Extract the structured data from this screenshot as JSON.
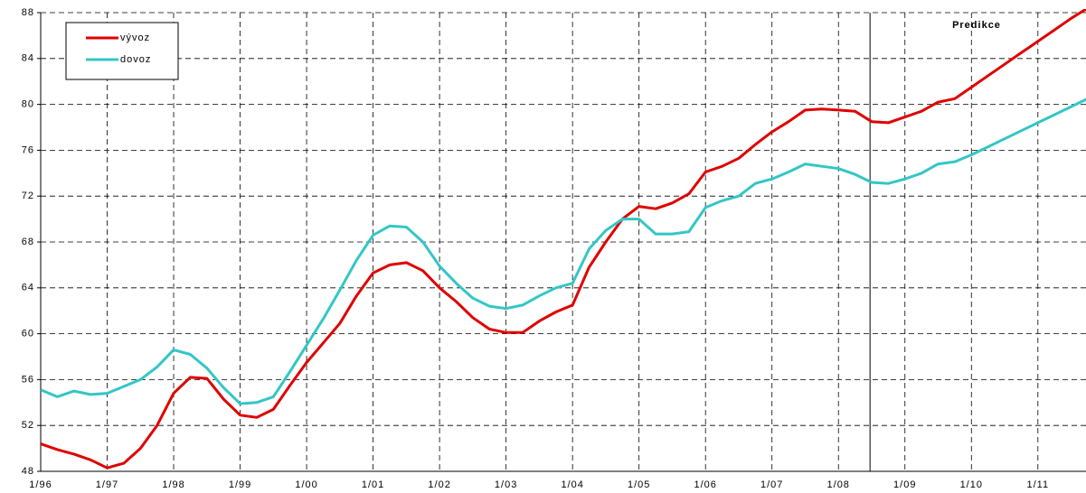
{
  "chart_data": {
    "type": "line",
    "categories": [
      "1/96",
      null,
      null,
      null,
      "1/97",
      null,
      null,
      null,
      "1/98",
      null,
      null,
      null,
      "1/99",
      null,
      null,
      null,
      "1/00",
      null,
      null,
      null,
      "1/01",
      null,
      null,
      null,
      "1/02",
      null,
      null,
      null,
      "1/03",
      null,
      null,
      null,
      "1/04",
      null,
      null,
      null,
      "1/05",
      null,
      null,
      null,
      "1/06",
      null,
      null,
      null,
      "1/07",
      null,
      null,
      null,
      "1/08",
      null,
      null,
      null,
      "1/09",
      null,
      null,
      null,
      "1/10",
      null,
      null,
      null,
      "1/11",
      null,
      null,
      null
    ],
    "series": [
      {
        "name": "vývoz",
        "color": "#e00000",
        "values": [
          50.4,
          49.9,
          49.5,
          49.0,
          48.3,
          48.7,
          50.0,
          52.0,
          54.8,
          56.2,
          56.1,
          54.3,
          52.9,
          52.7,
          53.4,
          55.5,
          57.5,
          59.2,
          60.9,
          63.3,
          65.3,
          66.0,
          66.2,
          65.5,
          64.0,
          62.8,
          61.4,
          60.4,
          60.1,
          60.1,
          61.1,
          61.9,
          62.5,
          65.8,
          68.0,
          70.0,
          71.1,
          70.9,
          71.4,
          72.2,
          74.1,
          74.6,
          75.3,
          76.5,
          77.6,
          78.5,
          79.5,
          79.6,
          79.5,
          79.4,
          78.5,
          78.4,
          78.9,
          79.4,
          80.2,
          80.5,
          81.5,
          82.5,
          83.5,
          84.5,
          85.5,
          86.5,
          87.5,
          88.4
        ]
      },
      {
        "name": "dovoz",
        "color": "#33c6c6",
        "values": [
          55.1,
          54.5,
          55.0,
          54.7,
          54.8,
          55.4,
          56.0,
          57.1,
          58.6,
          58.2,
          57.0,
          55.3,
          53.9,
          54.0,
          54.5,
          56.7,
          59.0,
          61.3,
          63.8,
          66.4,
          68.6,
          69.4,
          69.3,
          68.0,
          65.9,
          64.4,
          63.1,
          62.4,
          62.2,
          62.5,
          63.3,
          64.0,
          64.4,
          67.4,
          69.0,
          70.0,
          70.0,
          68.7,
          68.7,
          68.9,
          71.0,
          71.6,
          72.0,
          73.1,
          73.5,
          74.1,
          74.8,
          74.6,
          74.4,
          73.9,
          73.2,
          73.1,
          73.5,
          74.0,
          74.8,
          75.0,
          75.6,
          76.3,
          77.0,
          77.7,
          78.4,
          79.1,
          79.8,
          80.5
        ]
      }
    ],
    "ylim": [
      48,
      88
    ],
    "yticks": [
      48,
      52,
      56,
      60,
      64,
      68,
      72,
      76,
      80,
      84,
      88
    ],
    "grid": true,
    "annotation": "Predikce",
    "vline": 49.9,
    "legend": "upper left"
  }
}
